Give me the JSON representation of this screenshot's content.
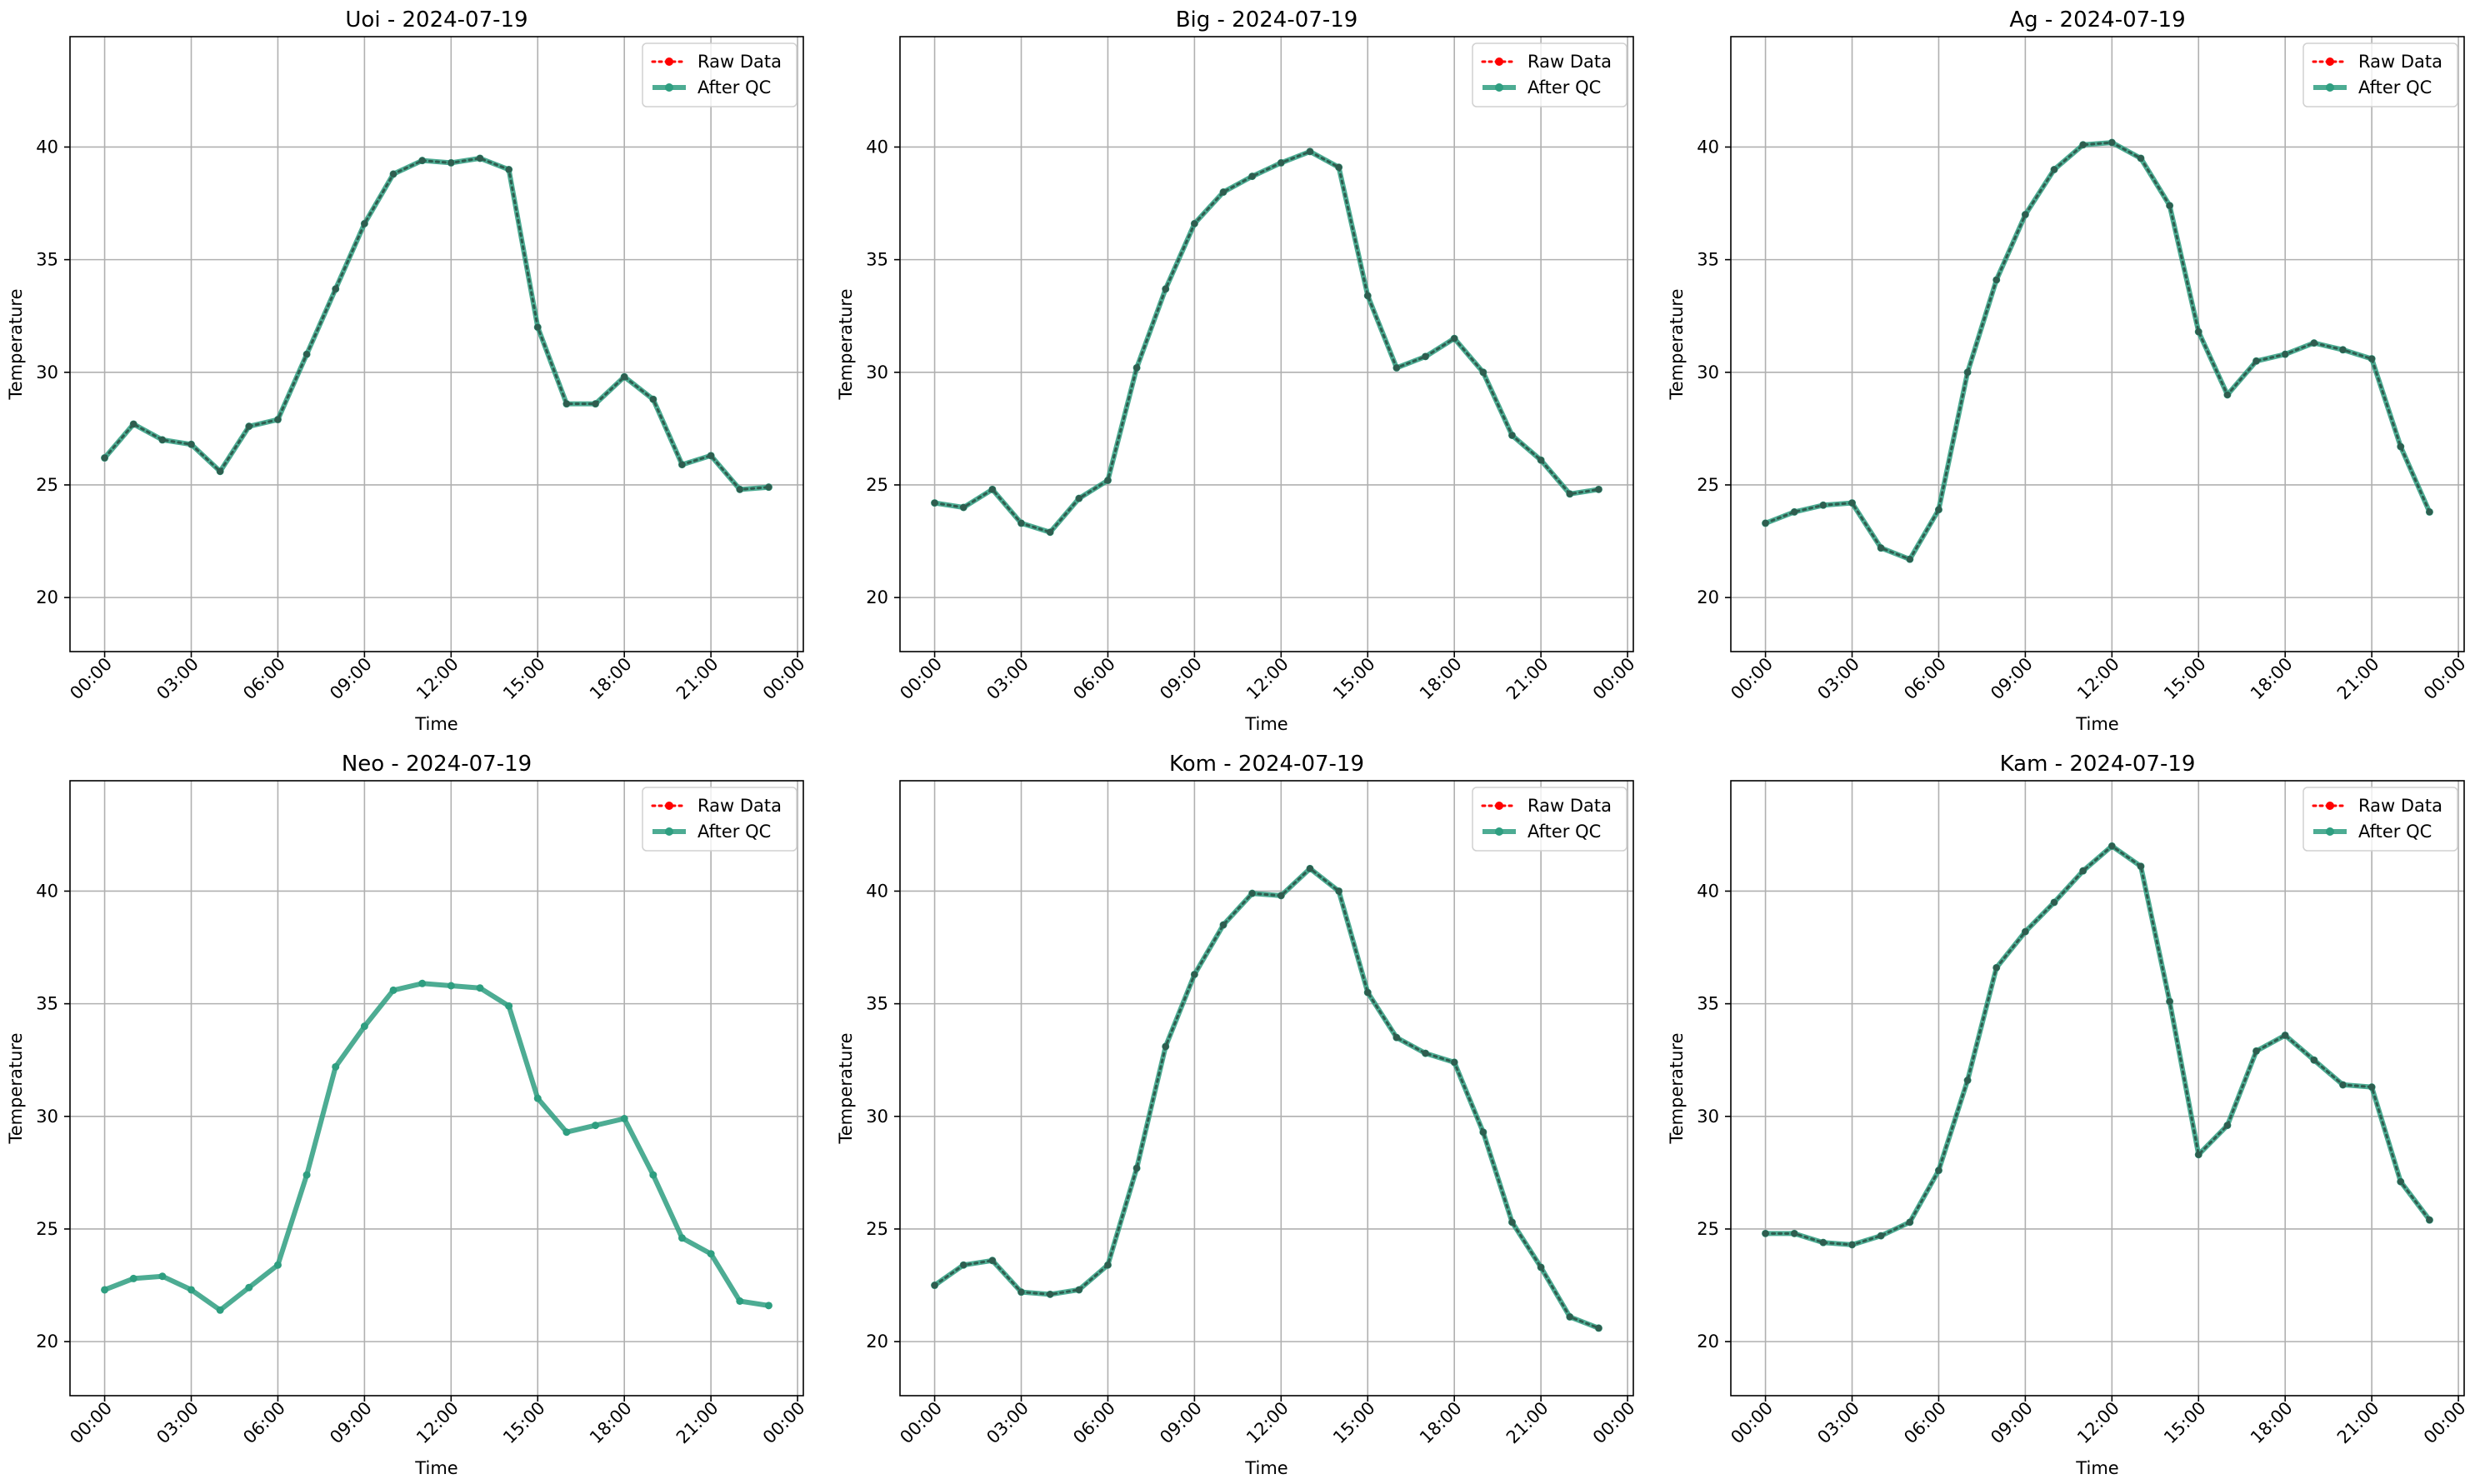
{
  "chart_data": [
    {
      "type": "line",
      "title": "Uoi - 2024-07-19",
      "xlabel": "Time",
      "ylabel": "Temperature",
      "ylim": [
        17.6,
        44.9
      ],
      "yticks": [
        "20",
        "25",
        "30",
        "35",
        "40"
      ],
      "xticks": [
        "00:00",
        "03:00",
        "06:00",
        "09:00",
        "12:00",
        "15:00",
        "18:00",
        "21:00",
        "00:00"
      ],
      "x_hours": [
        0,
        1,
        2,
        3,
        4,
        5,
        6,
        7,
        8,
        9,
        10,
        11,
        12,
        13,
        14,
        15,
        16,
        17,
        18,
        19,
        20,
        21,
        22,
        23
      ],
      "series": [
        {
          "name": "Raw Data",
          "values": [
            26.2,
            27.7,
            27.0,
            26.8,
            25.6,
            27.6,
            27.9,
            30.8,
            33.7,
            36.6,
            38.8,
            39.4,
            39.3,
            39.5,
            39.0,
            32.0,
            28.6,
            28.6,
            29.8,
            28.8,
            25.9,
            26.3,
            24.8,
            24.9
          ]
        },
        {
          "name": "After QC",
          "values": [
            26.2,
            27.7,
            27.0,
            26.8,
            25.6,
            27.6,
            27.9,
            30.8,
            33.7,
            36.6,
            38.8,
            39.4,
            39.3,
            39.5,
            39.0,
            32.0,
            28.6,
            28.6,
            29.8,
            28.8,
            25.9,
            26.3,
            24.8,
            24.9
          ]
        }
      ],
      "legend": "top-right",
      "grid": true
    },
    {
      "type": "line",
      "title": "Big - 2024-07-19",
      "xlabel": "Time",
      "ylabel": "Temperature",
      "ylim": [
        17.6,
        44.9
      ],
      "yticks": [
        "20",
        "25",
        "30",
        "35",
        "40"
      ],
      "xticks": [
        "00:00",
        "03:00",
        "06:00",
        "09:00",
        "12:00",
        "15:00",
        "18:00",
        "21:00",
        "00:00"
      ],
      "x_hours": [
        0,
        1,
        2,
        3,
        4,
        5,
        6,
        7,
        8,
        9,
        10,
        11,
        12,
        13,
        14,
        15,
        16,
        17,
        18,
        19,
        20,
        21,
        22,
        23
      ],
      "series": [
        {
          "name": "Raw Data",
          "values": [
            24.2,
            24.0,
            24.8,
            23.3,
            22.9,
            24.4,
            25.2,
            30.2,
            33.7,
            36.6,
            38.0,
            38.7,
            39.3,
            39.8,
            39.1,
            33.4,
            30.2,
            30.7,
            31.5,
            30.0,
            27.2,
            26.1,
            24.6,
            24.8
          ]
        },
        {
          "name": "After QC",
          "values": [
            24.2,
            24.0,
            24.8,
            23.3,
            22.9,
            24.4,
            25.2,
            30.2,
            33.7,
            36.6,
            38.0,
            38.7,
            39.3,
            39.8,
            39.1,
            33.4,
            30.2,
            30.7,
            31.5,
            30.0,
            27.2,
            26.1,
            24.6,
            24.8
          ]
        }
      ],
      "legend": "top-right",
      "grid": true
    },
    {
      "type": "line",
      "title": "Ag - 2024-07-19",
      "xlabel": "Time",
      "ylabel": "Temperature",
      "ylim": [
        17.6,
        44.9
      ],
      "yticks": [
        "20",
        "25",
        "30",
        "35",
        "40"
      ],
      "xticks": [
        "00:00",
        "03:00",
        "06:00",
        "09:00",
        "12:00",
        "15:00",
        "18:00",
        "21:00",
        "00:00"
      ],
      "x_hours": [
        0,
        1,
        2,
        3,
        4,
        5,
        6,
        7,
        8,
        9,
        10,
        11,
        12,
        13,
        14,
        15,
        16,
        17,
        18,
        19,
        20,
        21,
        22,
        23
      ],
      "series": [
        {
          "name": "Raw Data",
          "values": [
            23.3,
            23.8,
            24.1,
            24.2,
            22.2,
            21.7,
            23.9,
            30.0,
            34.1,
            37.0,
            39.0,
            40.1,
            40.2,
            39.5,
            37.4,
            31.8,
            29.0,
            30.5,
            30.8,
            31.3,
            31.0,
            30.6,
            26.7,
            23.8
          ]
        },
        {
          "name": "After QC",
          "values": [
            23.3,
            23.8,
            24.1,
            24.2,
            22.2,
            21.7,
            23.9,
            30.0,
            34.1,
            37.0,
            39.0,
            40.1,
            40.2,
            39.5,
            37.4,
            31.8,
            29.0,
            30.5,
            30.8,
            31.3,
            31.0,
            30.6,
            26.7,
            23.8
          ]
        }
      ],
      "legend": "top-right",
      "grid": true
    },
    {
      "type": "line",
      "title": "Neo - 2024-07-19",
      "xlabel": "Time",
      "ylabel": "Temperature",
      "ylim": [
        17.6,
        44.9
      ],
      "yticks": [
        "20",
        "25",
        "30",
        "35",
        "40"
      ],
      "xticks": [
        "00:00",
        "03:00",
        "06:00",
        "09:00",
        "12:00",
        "15:00",
        "18:00",
        "21:00",
        "00:00"
      ],
      "x_hours": [
        0,
        1,
        2,
        3,
        4,
        5,
        6,
        7,
        8,
        9,
        10,
        11,
        12,
        13,
        14,
        15,
        16,
        17,
        18,
        19,
        20,
        21,
        22,
        23
      ],
      "raw_visible": false,
      "series": [
        {
          "name": "Raw Data",
          "values": []
        },
        {
          "name": "After QC",
          "values": [
            22.3,
            22.8,
            22.9,
            22.3,
            21.4,
            22.4,
            23.4,
            27.4,
            32.2,
            34.0,
            35.6,
            35.9,
            35.8,
            35.7,
            34.9,
            30.8,
            29.3,
            29.6,
            29.9,
            27.4,
            24.6,
            23.9,
            21.8,
            21.6
          ]
        }
      ],
      "legend": "top-right",
      "grid": true
    },
    {
      "type": "line",
      "title": "Kom - 2024-07-19",
      "xlabel": "Time",
      "ylabel": "Temperature",
      "ylim": [
        17.6,
        44.9
      ],
      "yticks": [
        "20",
        "25",
        "30",
        "35",
        "40"
      ],
      "xticks": [
        "00:00",
        "03:00",
        "06:00",
        "09:00",
        "12:00",
        "15:00",
        "18:00",
        "21:00",
        "00:00"
      ],
      "x_hours": [
        0,
        1,
        2,
        3,
        4,
        5,
        6,
        7,
        8,
        9,
        10,
        11,
        12,
        13,
        14,
        15,
        16,
        17,
        18,
        19,
        20,
        21,
        22,
        23
      ],
      "series": [
        {
          "name": "Raw Data",
          "values": [
            22.5,
            23.4,
            23.6,
            22.2,
            22.1,
            22.3,
            23.4,
            27.7,
            33.1,
            36.3,
            38.5,
            39.9,
            39.8,
            41.0,
            40.0,
            35.5,
            33.5,
            32.8,
            32.4,
            29.3,
            25.3,
            23.3,
            21.1,
            20.6
          ]
        },
        {
          "name": "After QC",
          "values": [
            22.5,
            23.4,
            23.6,
            22.2,
            22.1,
            22.3,
            23.4,
            27.7,
            33.1,
            36.3,
            38.5,
            39.9,
            39.8,
            41.0,
            40.0,
            35.5,
            33.5,
            32.8,
            32.4,
            29.3,
            25.3,
            23.3,
            21.1,
            20.6
          ]
        }
      ],
      "legend": "top-right",
      "grid": true
    },
    {
      "type": "line",
      "title": "Kam - 2024-07-19",
      "xlabel": "Time",
      "ylabel": "Temperature",
      "ylim": [
        17.6,
        44.9
      ],
      "yticks": [
        "20",
        "25",
        "30",
        "35",
        "40"
      ],
      "xticks": [
        "00:00",
        "03:00",
        "06:00",
        "09:00",
        "12:00",
        "15:00",
        "18:00",
        "21:00",
        "00:00"
      ],
      "x_hours": [
        0,
        1,
        2,
        3,
        4,
        5,
        6,
        7,
        8,
        9,
        10,
        11,
        12,
        13,
        14,
        15,
        16,
        17,
        18,
        19,
        20,
        21,
        22,
        23
      ],
      "series": [
        {
          "name": "Raw Data",
          "values": [
            24.8,
            24.8,
            24.4,
            24.3,
            24.7,
            25.3,
            27.6,
            31.6,
            36.6,
            38.2,
            39.5,
            40.9,
            42.0,
            41.1,
            35.1,
            28.3,
            29.6,
            32.9,
            33.6,
            32.5,
            31.4,
            31.3,
            27.1,
            25.4
          ]
        },
        {
          "name": "After QC",
          "values": [
            24.8,
            24.8,
            24.4,
            24.3,
            24.7,
            25.3,
            27.6,
            31.6,
            36.6,
            38.2,
            39.5,
            40.9,
            42.0,
            41.1,
            35.1,
            28.3,
            29.6,
            32.9,
            33.6,
            32.5,
            31.4,
            31.3,
            27.1,
            25.4
          ]
        }
      ],
      "legend": "top-right",
      "grid": true
    }
  ],
  "colors": {
    "raw": "#ff0000",
    "qc": "#2e9e80",
    "grid": "#b0b0b0"
  }
}
